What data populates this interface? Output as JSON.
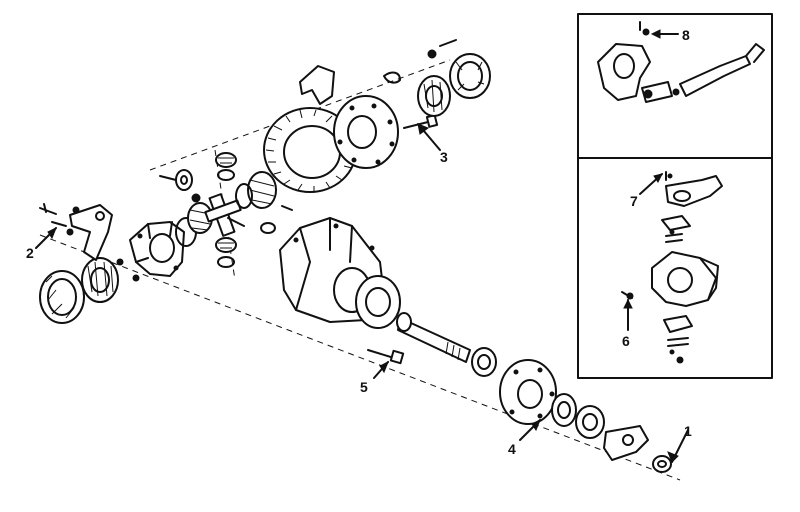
{
  "callouts": [
    {
      "id": "1",
      "label": "1"
    },
    {
      "id": "2",
      "label": "2"
    },
    {
      "id": "3",
      "label": "3"
    },
    {
      "id": "4",
      "label": "4"
    },
    {
      "id": "5",
      "label": "5"
    },
    {
      "id": "6",
      "label": "6"
    },
    {
      "id": "7",
      "label": "7"
    },
    {
      "id": "8",
      "label": "8"
    }
  ],
  "inset_panels": [
    "tie-rod-end-detail",
    "steering-knuckle-detail"
  ],
  "colors": {
    "ink": "#111111",
    "paper": "#ffffff"
  }
}
